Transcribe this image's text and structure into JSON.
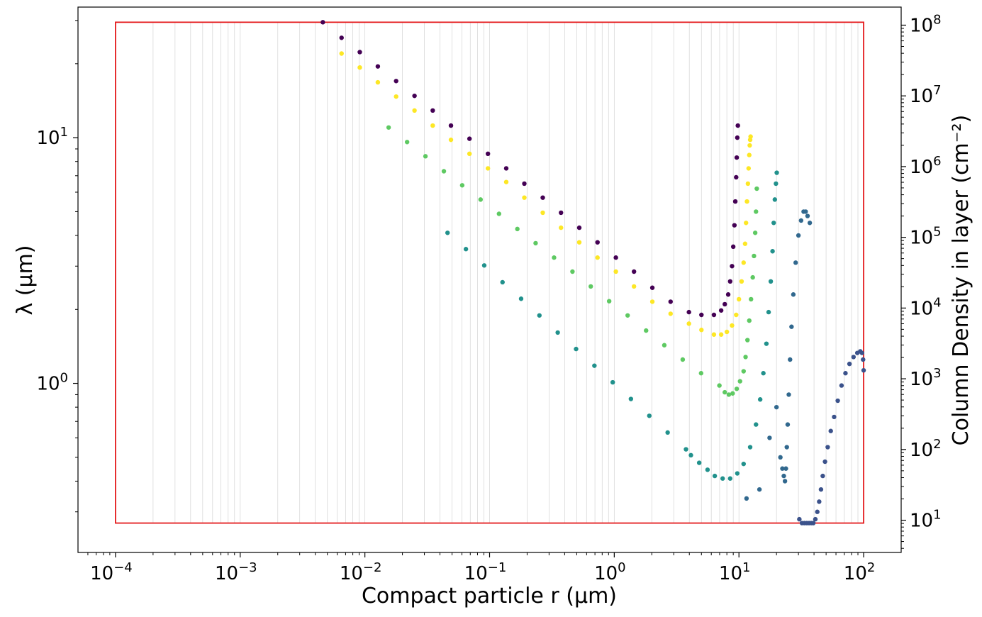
{
  "chart_data": {
    "type": "scatter",
    "xlabel": "Compact particle r (μm)",
    "ylabel": "λ (μm)",
    "y2label": "Column Density in layer (cm⁻²)",
    "x_scale": "log",
    "y_scale": "log",
    "y2_scale": "log",
    "xlim": [
      5e-05,
      200
    ],
    "ylim": [
      0.205,
      34
    ],
    "y2lim": [
      3.5,
      180000000
    ],
    "x_ticks": [
      {
        "value": 0.0001,
        "base": "10",
        "exp": "−4"
      },
      {
        "value": 0.001,
        "base": "10",
        "exp": "−3"
      },
      {
        "value": 0.01,
        "base": "10",
        "exp": "−2"
      },
      {
        "value": 0.1,
        "base": "10",
        "exp": "−1"
      },
      {
        "value": 1,
        "base": "10",
        "exp": "0"
      },
      {
        "value": 10,
        "base": "10",
        "exp": "1"
      },
      {
        "value": 100,
        "base": "10",
        "exp": "2"
      }
    ],
    "y_ticks": [
      {
        "value": 1,
        "base": "10",
        "exp": "0"
      },
      {
        "value": 10,
        "base": "10",
        "exp": "1"
      }
    ],
    "y2_ticks": [
      {
        "value": 10,
        "base": "10",
        "exp": "1"
      },
      {
        "value": 100,
        "base": "10",
        "exp": "2"
      },
      {
        "value": 1000,
        "base": "10",
        "exp": "3"
      },
      {
        "value": 10000,
        "base": "10",
        "exp": "4"
      },
      {
        "value": 100000,
        "base": "10",
        "exp": "5"
      },
      {
        "value": 1000000,
        "base": "10",
        "exp": "6"
      },
      {
        "value": 10000000,
        "base": "10",
        "exp": "7"
      },
      {
        "value": 100000000,
        "base": "10",
        "exp": "8"
      }
    ],
    "box": {
      "x": [
        0.0001,
        100
      ],
      "y": [
        0.27,
        29.5
      ],
      "color": "#e41a1c"
    },
    "grid_color": "#d9d9d9",
    "series": [
      {
        "color": "#440154",
        "x": [
          0.0046,
          0.0065,
          0.0091,
          0.0127,
          0.0178,
          0.025,
          0.035,
          0.049,
          0.069,
          0.097,
          0.136,
          0.19,
          0.267,
          0.374,
          0.524,
          0.734,
          1.03,
          1.44,
          2.02,
          2.83,
          3.97,
          5.0,
          6.3,
          7.2,
          7.7,
          8.2,
          8.5,
          8.8,
          9.0,
          9.2,
          9.35,
          9.5,
          9.6,
          9.7,
          9.8
        ],
        "y": [
          29.5,
          25.5,
          22.3,
          19.5,
          17.0,
          14.8,
          12.9,
          11.2,
          9.9,
          8.6,
          7.5,
          6.5,
          5.7,
          4.95,
          4.3,
          3.75,
          3.25,
          2.85,
          2.45,
          2.15,
          1.95,
          1.9,
          1.9,
          1.98,
          2.1,
          2.3,
          2.6,
          3.0,
          3.6,
          4.4,
          5.5,
          6.9,
          8.3,
          10.0,
          11.2
        ]
      },
      {
        "color": "#fde725",
        "x": [
          0.0065,
          0.0091,
          0.0127,
          0.0178,
          0.025,
          0.035,
          0.049,
          0.069,
          0.097,
          0.136,
          0.19,
          0.267,
          0.374,
          0.524,
          0.734,
          1.03,
          1.44,
          2.02,
          2.83,
          3.97,
          5.0,
          6.3,
          7.2,
          8.0,
          8.8,
          9.5,
          10.0,
          10.5,
          10.9,
          11.2,
          11.4,
          11.6,
          11.8,
          11.95,
          12.1,
          12.2,
          12.3,
          12.4
        ],
        "y": [
          22.0,
          19.3,
          16.8,
          14.7,
          12.9,
          11.2,
          9.8,
          8.6,
          7.5,
          6.6,
          5.7,
          4.95,
          4.3,
          3.75,
          3.25,
          2.85,
          2.48,
          2.15,
          1.92,
          1.75,
          1.65,
          1.58,
          1.58,
          1.62,
          1.72,
          1.9,
          2.2,
          2.6,
          3.1,
          3.7,
          4.5,
          5.5,
          6.5,
          7.5,
          8.5,
          9.3,
          9.8,
          10.1
        ]
      },
      {
        "color": "#5ec962",
        "x": [
          0.0155,
          0.0218,
          0.0306,
          0.043,
          0.0603,
          0.0847,
          0.119,
          0.167,
          0.234,
          0.329,
          0.462,
          0.648,
          0.91,
          1.28,
          1.8,
          2.52,
          3.54,
          4.97,
          6.97,
          7.7,
          8.3,
          8.9,
          9.6,
          10.2,
          10.9,
          11.3,
          11.7,
          12.1,
          12.5,
          12.9,
          13.2,
          13.5,
          13.7,
          13.9
        ],
        "y": [
          11.0,
          9.6,
          8.4,
          7.3,
          6.4,
          5.6,
          4.9,
          4.25,
          3.72,
          3.25,
          2.85,
          2.48,
          2.16,
          1.89,
          1.64,
          1.43,
          1.25,
          1.1,
          0.98,
          0.92,
          0.9,
          0.91,
          0.95,
          1.02,
          1.12,
          1.28,
          1.5,
          1.8,
          2.2,
          2.7,
          3.3,
          4.1,
          5.0,
          6.2
        ]
      },
      {
        "color": "#21918c",
        "x": [
          0.046,
          0.0646,
          0.0906,
          0.127,
          0.179,
          0.251,
          0.352,
          0.494,
          0.693,
          0.972,
          1.36,
          1.91,
          2.68,
          3.76,
          4.12,
          4.8,
          5.6,
          6.4,
          7.4,
          8.5,
          9.7,
          10.9,
          12.3,
          13.7,
          14.8,
          15.7,
          16.6,
          17.3,
          18.0,
          18.6,
          19.0,
          19.4,
          19.8,
          20.1
        ],
        "y": [
          4.1,
          3.52,
          3.02,
          2.58,
          2.21,
          1.89,
          1.61,
          1.38,
          1.18,
          1.01,
          0.864,
          0.738,
          0.631,
          0.539,
          0.51,
          0.475,
          0.445,
          0.42,
          0.41,
          0.41,
          0.43,
          0.47,
          0.55,
          0.68,
          0.86,
          1.1,
          1.45,
          1.95,
          2.6,
          3.45,
          4.5,
          5.6,
          6.5,
          7.2
        ]
      },
      {
        "color": "#31688e",
        "x": [
          11.5,
          14.6,
          17.6,
          20.0,
          21.5,
          22.3,
          22.9,
          23.4,
          23.8,
          24.2,
          24.6,
          25.1,
          25.7,
          26.4,
          27.3,
          28.5,
          30.0,
          31.5,
          33.0,
          34.3,
          35.5,
          37.0
        ],
        "y": [
          0.34,
          0.37,
          0.6,
          0.8,
          0.5,
          0.45,
          0.42,
          0.4,
          0.45,
          0.55,
          0.68,
          0.9,
          1.25,
          1.7,
          2.3,
          3.1,
          4.0,
          4.6,
          5.0,
          5.0,
          4.8,
          4.5
        ]
      },
      {
        "color": "#3b528b",
        "x": [
          30.5,
          32.0,
          33.5,
          35.0,
          36.5,
          38.0,
          39.5,
          41.0,
          42.5,
          44.0,
          45.5,
          47.0,
          49.0,
          51.5,
          54.5,
          58.0,
          62.0,
          66.5,
          71.5,
          77.0,
          83.0,
          89.0,
          94.0,
          97.0,
          99.0,
          100.0
        ],
        "y": [
          0.28,
          0.27,
          0.27,
          0.27,
          0.27,
          0.27,
          0.27,
          0.28,
          0.3,
          0.33,
          0.37,
          0.42,
          0.48,
          0.55,
          0.64,
          0.73,
          0.85,
          0.98,
          1.1,
          1.2,
          1.28,
          1.33,
          1.35,
          1.33,
          1.25,
          1.13
        ]
      }
    ]
  }
}
